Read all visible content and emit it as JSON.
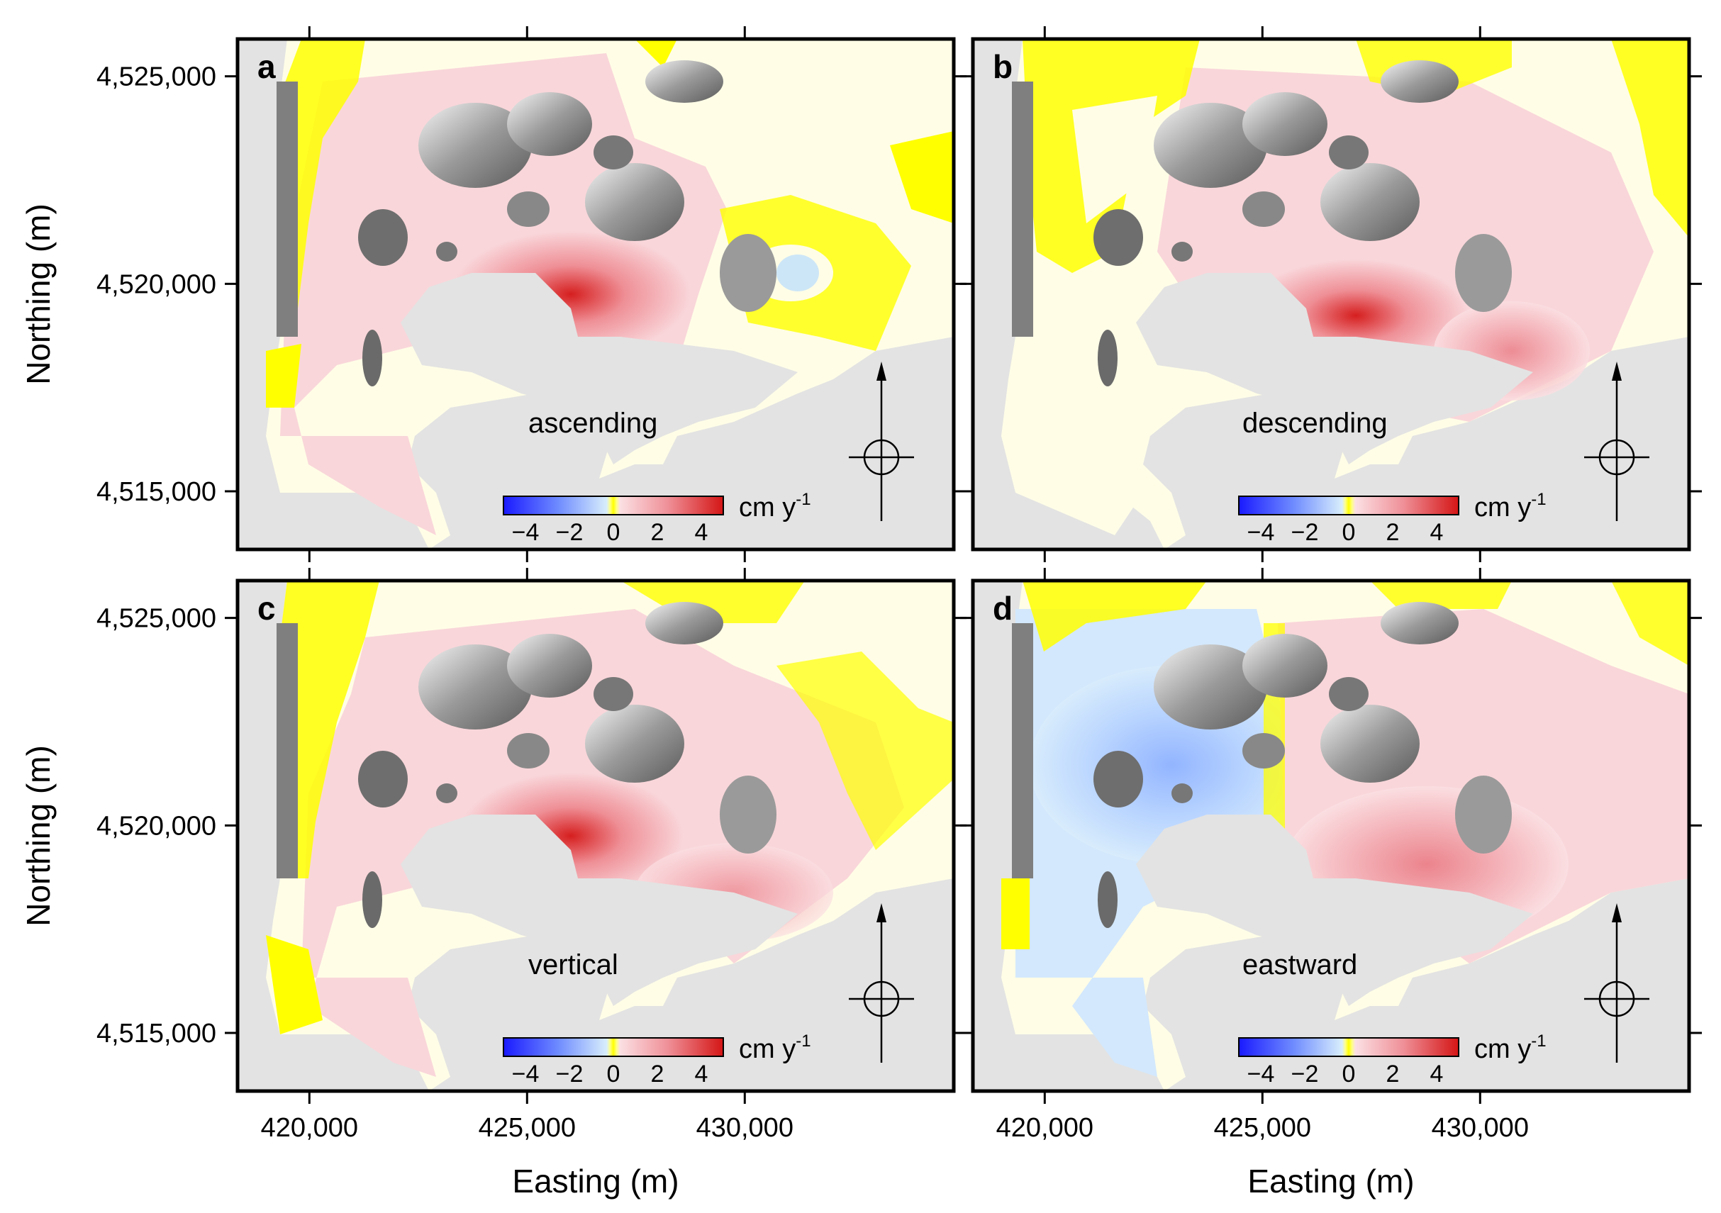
{
  "axes": {
    "xlabel": "Easting (m)",
    "ylabel": "Northing (m)",
    "x_ticks": [
      {
        "value": 420000,
        "label": "420,000"
      },
      {
        "value": 425000,
        "label": "425,000"
      },
      {
        "value": 430000,
        "label": "430,000"
      }
    ],
    "y_ticks": [
      {
        "value": 4525000,
        "label": "4,525,000"
      },
      {
        "value": 4520000,
        "label": "4,520,000"
      },
      {
        "value": 4515000,
        "label": "4,515,000"
      }
    ],
    "xlim": [
      418350,
      434800
    ],
    "ylim": [
      4513600,
      4525900
    ]
  },
  "colorbar": {
    "unit": "cm y",
    "unit_sup": "-1",
    "range": [
      -5,
      5
    ],
    "ticks": [
      {
        "value": -4,
        "label": "−4"
      },
      {
        "value": -2,
        "label": "−2"
      },
      {
        "value": 0,
        "label": "0"
      },
      {
        "value": 2,
        "label": "2"
      },
      {
        "value": 4,
        "label": "4"
      }
    ],
    "colors": {
      "negative": "#1a1aff",
      "near_zero_neg": "#d8eefc",
      "zero": "#ffff00",
      "near_zero_pos": "#fbe0e3",
      "positive": "#d41515"
    }
  },
  "colors": {
    "background_mask": "#e3e3e3",
    "no_data": "#fffde6",
    "near_zero": "#ffff00",
    "terrain_shade": "#8a8a8a",
    "frame": "#000000"
  },
  "panels": [
    {
      "letter": "a",
      "mode": "ascending",
      "peak_velocity_cm_per_yr": 4.5
    },
    {
      "letter": "b",
      "mode": "descending",
      "peak_velocity_cm_per_yr": 4.5
    },
    {
      "letter": "c",
      "mode": "vertical",
      "peak_velocity_cm_per_yr": 4.5
    },
    {
      "letter": "d",
      "mode": "eastward",
      "peak_velocity_cm_per_yr": 2.5
    }
  ],
  "north_arrow_icon": "north-arrow-icon",
  "chart_data": {
    "type": "heatmap",
    "description_source": "four InSAR velocity maps sharing axes",
    "x": [
      420000,
      425000,
      430000
    ],
    "y": [
      4515000,
      4520000,
      4525000
    ],
    "value_range": [
      -5,
      5
    ]
  }
}
